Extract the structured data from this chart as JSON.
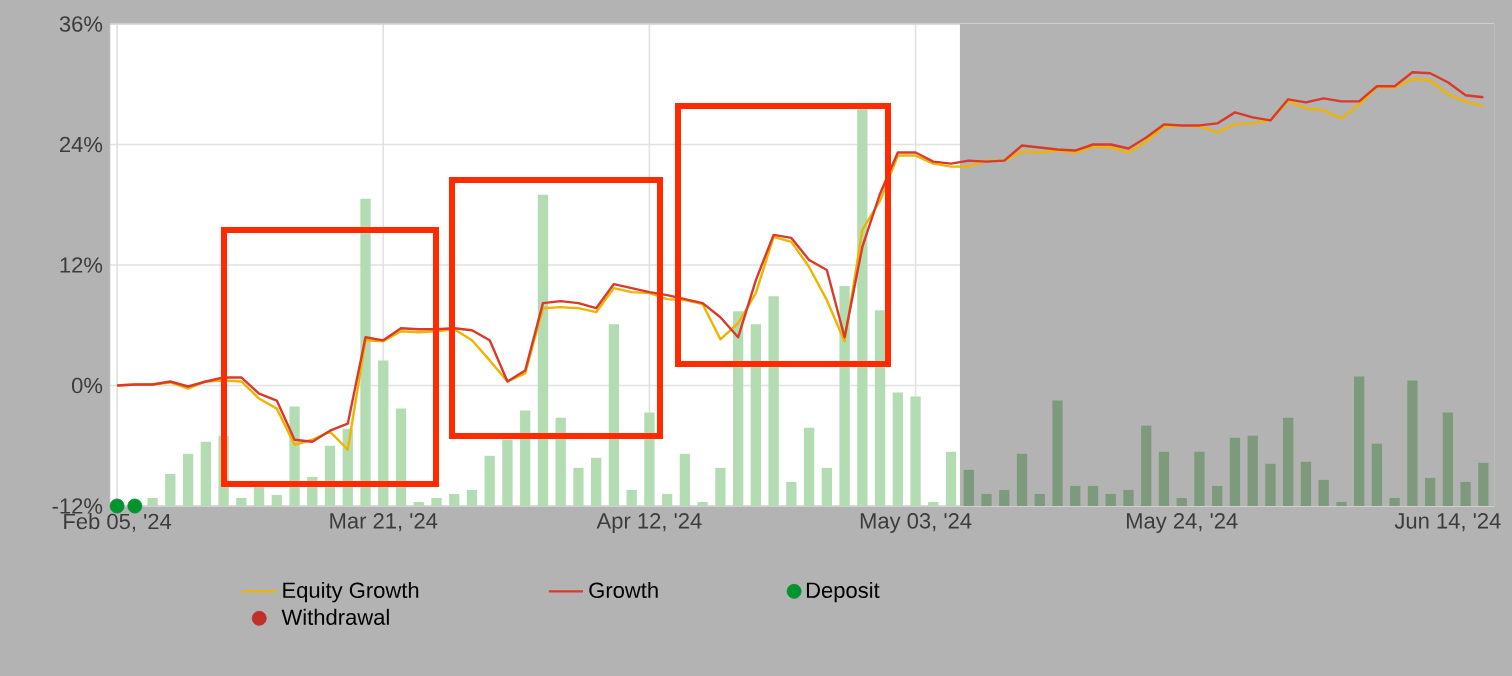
{
  "chart_data": {
    "type": "line",
    "categories": [
      "Feb 05, '24",
      null,
      null,
      null,
      null,
      null,
      null,
      null,
      null,
      null,
      null,
      null,
      null,
      null,
      null,
      "Mar 21, '24",
      null,
      null,
      null,
      null,
      null,
      null,
      null,
      null,
      null,
      null,
      null,
      null,
      null,
      null,
      "Apr 12, '24",
      null,
      null,
      null,
      null,
      null,
      null,
      null,
      null,
      null,
      null,
      null,
      null,
      null,
      null,
      "May 03, '24",
      null,
      null,
      null,
      null,
      null,
      null,
      null,
      null,
      null,
      null,
      null,
      null,
      null,
      null,
      "May 24, '24",
      null,
      null,
      null,
      null,
      null,
      null,
      null,
      null,
      null,
      null,
      null,
      null,
      null,
      null,
      "Jun 14, '24",
      null,
      null
    ],
    "ylim": [
      -12,
      36
    ],
    "yticks": [
      {
        "value": -12,
        "label": "-12%"
      },
      {
        "value": 0,
        "label": "0%"
      },
      {
        "value": 12,
        "label": "12%"
      },
      {
        "value": 24,
        "label": "24%"
      },
      {
        "value": 36,
        "label": "36%"
      }
    ],
    "grid": true,
    "legend": "bottom",
    "series": [
      {
        "type": "bar",
        "color": "#b3dcb3",
        "base": [
          null,
          null,
          -12,
          -12,
          -12,
          -12,
          -12,
          -12,
          -12,
          -12,
          -12,
          -12,
          -12,
          -12,
          -12,
          -12,
          -12,
          -12,
          -12,
          -12,
          -12,
          -12,
          -12,
          -12,
          -12,
          -12,
          -12,
          -12,
          -12,
          -12,
          -12,
          -12,
          -12,
          -12,
          -12,
          -12,
          -12,
          -12,
          -12,
          -12,
          -12,
          -12,
          -12,
          -12,
          -12,
          -12,
          -12,
          -12,
          -12,
          -12,
          -12,
          -12,
          -12,
          -12,
          -12,
          -12,
          -12,
          -12,
          -12,
          -12,
          -12,
          -12,
          -12,
          -12,
          -12,
          -12,
          -12,
          -12,
          -12,
          -12,
          -12,
          -12,
          -12,
          -12,
          -12,
          -12,
          -12,
          -12
        ],
        "values": [
          null,
          null,
          0.8,
          3.2,
          5.2,
          6.4,
          7.0,
          0.8,
          2.0,
          1.1,
          9.9,
          2.9,
          6.0,
          7.7,
          30.6,
          14.5,
          9.7,
          0.4,
          0.8,
          1.2,
          1.6,
          5.0,
          6.6,
          9.5,
          31.0,
          8.8,
          3.8,
          4.8,
          18.1,
          1.6,
          9.3,
          1.2,
          5.2,
          0.4,
          3.8,
          19.4,
          18.1,
          20.9,
          2.4,
          7.8,
          3.8,
          21.9,
          39.5,
          19.5,
          11.3,
          10.9,
          0.4,
          5.4,
          3.6,
          1.2,
          1.6,
          5.2,
          1.2,
          10.5,
          2.0,
          2.0,
          1.2,
          1.6,
          8.0,
          5.4,
          0.8,
          5.4,
          2.0,
          6.8,
          7.0,
          4.2,
          8.8,
          4.4,
          2.6,
          0.4,
          12.9,
          6.2,
          0.8,
          12.5,
          2.8,
          9.3,
          2.4,
          4.3
        ],
        "colors": [
          "#b3dcb3",
          "#b3dcb3",
          "#b3dcb3",
          "#b3dcb3",
          "#b3dcb3",
          "#b3dcb3",
          "#b3dcb3",
          "#b3dcb3",
          "#b3dcb3",
          "#b3dcb3",
          "#b3dcb3",
          "#b3dcb3",
          "#b3dcb3",
          "#b3dcb3",
          "#b3dcb3",
          "#b3dcb3",
          "#b3dcb3",
          "#b3dcb3",
          "#b3dcb3",
          "#b3dcb3",
          "#b3dcb3",
          "#b3dcb3",
          "#b3dcb3",
          "#b3dcb3",
          "#b3dcb3",
          "#b3dcb3",
          "#b3dcb3",
          "#b3dcb3",
          "#b3dcb3",
          "#b3dcb3",
          "#b3dcb3",
          "#b3dcb3",
          "#b3dcb3",
          "#b3dcb3",
          "#b3dcb3",
          "#b3dcb3",
          "#b3dcb3",
          "#b3dcb3",
          "#b3dcb3",
          "#b3dcb3",
          "#b3dcb3",
          "#b3dcb3",
          "#b3dcb3",
          "#b3dcb3",
          "#b3dcb3",
          "#b3dcb3",
          "#b3dcb3",
          "#b3dcb3",
          "#7d9a7d",
          "#7d9a7d",
          "#7d9a7d",
          "#7d9a7d",
          "#7d9a7d",
          "#7d9a7d",
          "#7d9a7d",
          "#7d9a7d",
          "#7d9a7d",
          "#7d9a7d",
          "#7d9a7d",
          "#7d9a7d",
          "#7d9a7d",
          "#7d9a7d",
          "#7d9a7d",
          "#7d9a7d",
          "#7d9a7d",
          "#7d9a7d",
          "#7d9a7d",
          "#7d9a7d",
          "#7d9a7d",
          "#7d9a7d",
          "#7d9a7d",
          "#7d9a7d",
          "#7d9a7d",
          "#7d9a7d",
          "#7d9a7d",
          "#7d9a7d",
          "#7d9a7d",
          "#7d9a7d"
        ]
      },
      {
        "name": "Equity Growth",
        "color": "#f0b400",
        "values": [
          0,
          0.1,
          0.1,
          0.3,
          -0.3,
          0.4,
          0.5,
          0.4,
          -1.3,
          -2.3,
          -5.9,
          -5.4,
          -4.6,
          -6.4,
          4.5,
          4.4,
          5.4,
          5.3,
          5.4,
          5.6,
          4.5,
          2.5,
          0.4,
          1.2,
          7.7,
          7.8,
          7.7,
          7.3,
          9.7,
          9.3,
          9.2,
          8.6,
          8.5,
          8.1,
          4.6,
          6.2,
          9.2,
          14.8,
          14.3,
          11.8,
          8.5,
          4.4,
          15.5,
          18.4,
          22.9,
          22.9,
          22.1,
          21.8,
          21.8,
          22.4,
          22.4,
          23.3,
          23.2,
          23.4,
          23.2,
          23.8,
          23.7,
          23.2,
          24.3,
          25.8,
          25.9,
          25.8,
          25.2,
          26.0,
          26.1,
          26.4,
          28.3,
          27.6,
          27.4,
          26.6,
          28.0,
          29.7,
          29.7,
          30.5,
          30.4,
          29.0,
          28.3,
          27.8
        ]
      },
      {
        "name": "Growth",
        "color": "#d93a2a",
        "values": [
          0,
          0.1,
          0.1,
          0.4,
          -0.1,
          0.4,
          0.8,
          0.8,
          -0.8,
          -1.5,
          -5.4,
          -5.6,
          -4.5,
          -3.8,
          4.8,
          4.5,
          5.7,
          5.6,
          5.6,
          5.7,
          5.5,
          4.5,
          0.4,
          1.5,
          8.2,
          8.4,
          8.2,
          7.7,
          10.1,
          9.7,
          9.3,
          9.0,
          8.6,
          8.2,
          6.8,
          4.8,
          10.5,
          15.0,
          14.7,
          12.5,
          11.5,
          4.8,
          13.8,
          19.1,
          23.2,
          23.2,
          22.3,
          22.1,
          22.4,
          22.3,
          22.4,
          23.9,
          23.7,
          23.5,
          23.4,
          24.0,
          24.0,
          23.6,
          24.7,
          26.0,
          25.9,
          25.9,
          26.1,
          27.2,
          26.7,
          26.4,
          28.5,
          28.2,
          28.6,
          28.3,
          28.3,
          29.8,
          29.8,
          31.2,
          31.1,
          30.2,
          28.9,
          28.7
        ]
      },
      {
        "type": "scatter",
        "name": "Deposit",
        "color": "#00942e",
        "marker": "circle",
        "values": [
          -12,
          -12,
          null,
          null,
          null,
          null,
          null,
          null,
          null,
          null,
          null,
          null,
          null,
          null,
          null,
          null,
          null,
          null,
          null,
          null,
          null,
          null,
          null,
          null,
          null,
          null,
          null,
          null,
          null,
          null,
          null,
          null,
          null,
          null,
          null,
          null,
          null,
          null,
          null,
          null,
          null,
          null,
          null,
          null,
          null,
          null,
          null,
          null,
          null,
          null,
          null,
          null,
          null,
          null,
          null,
          null,
          null,
          null,
          null,
          null,
          null,
          null,
          null,
          null,
          null,
          null,
          null,
          null,
          null,
          null,
          null,
          null,
          null,
          null,
          null,
          null,
          null,
          null
        ]
      },
      {
        "type": "scatter",
        "name": "Withdrawal",
        "color": "#c0302a",
        "marker": "circle",
        "values": [
          null,
          null,
          null,
          null,
          null,
          null,
          null,
          null,
          null,
          null,
          null,
          null,
          null,
          null,
          null,
          null,
          null,
          null,
          null,
          null,
          null,
          null,
          null,
          null,
          null,
          null,
          null,
          null,
          null,
          null,
          null,
          null,
          null,
          null,
          null,
          null,
          null,
          null,
          null,
          null,
          null,
          null,
          null,
          null,
          null,
          null,
          null,
          null,
          null,
          null,
          null,
          null,
          null,
          null,
          null,
          null,
          null,
          null,
          null,
          null,
          null,
          null,
          null,
          null,
          null,
          null,
          null,
          null,
          null,
          null,
          null,
          null,
          null,
          null,
          null,
          null,
          null,
          null
        ]
      }
    ]
  }
}
